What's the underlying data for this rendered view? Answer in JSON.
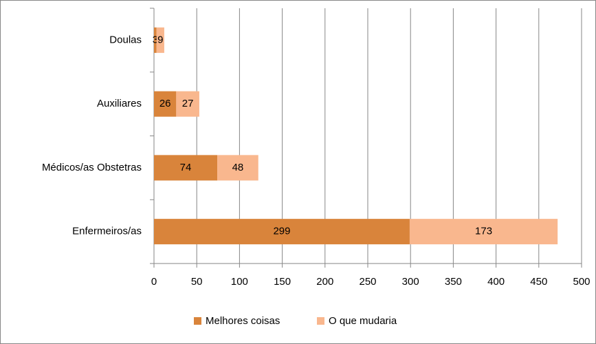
{
  "chart_data": {
    "type": "bar",
    "orientation": "horizontal",
    "stacked": true,
    "categories": [
      "Doulas",
      "Auxiliares",
      "Médicos/as Obstetras",
      "Enfermeiros/as"
    ],
    "series": [
      {
        "name": "Melhores coisas",
        "color": "#d9843b",
        "values": [
          3,
          26,
          74,
          299
        ]
      },
      {
        "name": "O que mudaria",
        "color": "#f9b78e",
        "values": [
          9,
          27,
          48,
          173
        ]
      }
    ],
    "xlim": [
      0,
      500
    ],
    "xticks": [
      0,
      50,
      100,
      150,
      200,
      250,
      300,
      350,
      400,
      450,
      500
    ],
    "grid": true,
    "data_labels": true,
    "legend": "bottom"
  }
}
